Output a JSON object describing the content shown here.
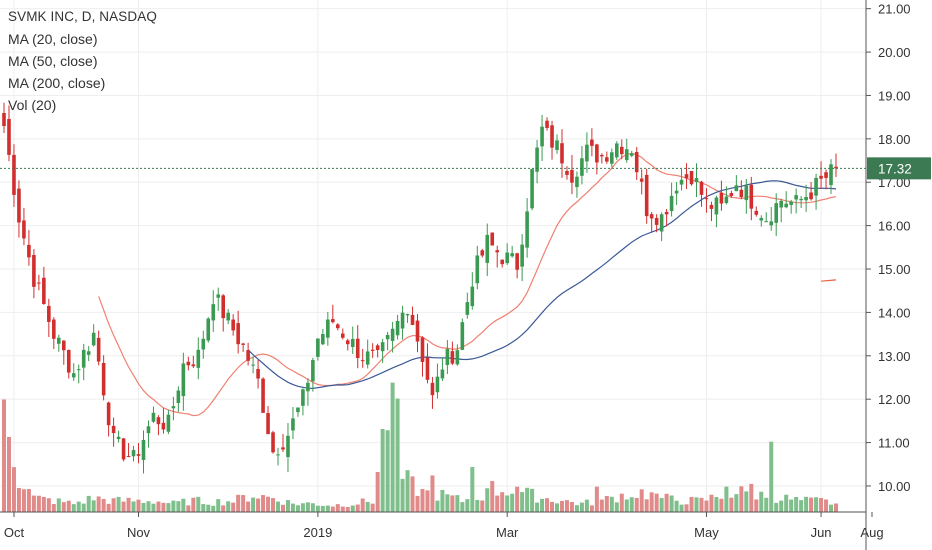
{
  "chart_data": {
    "type": "candlestick",
    "title": "SVMK INC, D, NASDAQ",
    "legend": [
      "MA (20, close)",
      "MA (50, close)",
      "MA (200, close)",
      "Vol (20)"
    ],
    "y_axis": {
      "position": "right",
      "ylim": [
        9.4,
        21.2
      ],
      "ticks": [
        "21.00",
        "20.00",
        "19.00",
        "18.00",
        "17.00",
        "16.00",
        "15.00",
        "14.00",
        "13.00",
        "12.00",
        "11.00",
        "10.00"
      ]
    },
    "x_axis": {
      "tick_labels": [
        "Oct",
        "Nov",
        "2019",
        "Mar",
        "May",
        "Jun",
        "Aug"
      ]
    },
    "last_price": "17.32",
    "last_price_value": 17.32,
    "colors": {
      "up": "#26a69a",
      "up_body": "#3a9a52",
      "down": "#d12e2e",
      "vol_up": "#7fbf8c",
      "vol_down": "#e08a8a",
      "ma20": "#f08070",
      "ma50": "#3b5998",
      "ma200": "#e8603c",
      "last_price_bg": "#3b7a52",
      "grid": "#eeeeee"
    },
    "price_anchors": [
      [
        0,
        18.3
      ],
      [
        3,
        16.2
      ],
      [
        6,
        14.8
      ],
      [
        10,
        13.5
      ],
      [
        14,
        12.6
      ],
      [
        18,
        13.5
      ],
      [
        22,
        11.0
      ],
      [
        26,
        10.6
      ],
      [
        30,
        11.6
      ],
      [
        33,
        11.4
      ],
      [
        36,
        12.8
      ],
      [
        39,
        13.0
      ],
      [
        42,
        14.4
      ],
      [
        45,
        13.8
      ],
      [
        48,
        13.2
      ],
      [
        51,
        12.4
      ],
      [
        54,
        10.8
      ],
      [
        57,
        11.2
      ],
      [
        60,
        12.0
      ],
      [
        63,
        13.4
      ],
      [
        66,
        13.8
      ],
      [
        69,
        13.4
      ],
      [
        72,
        13.0
      ],
      [
        75,
        12.9
      ],
      [
        78,
        13.5
      ],
      [
        81,
        14.2
      ],
      [
        84,
        13.0
      ],
      [
        86,
        12.0
      ],
      [
        88,
        12.8
      ],
      [
        91,
        13.2
      ],
      [
        94,
        14.8
      ],
      [
        97,
        15.6
      ],
      [
        100,
        15.3
      ],
      [
        103,
        15.1
      ],
      [
        106,
        17.2
      ],
      [
        108,
        18.2
      ],
      [
        111,
        17.8
      ],
      [
        114,
        17.2
      ],
      [
        117,
        17.7
      ],
      [
        120,
        17.6
      ],
      [
        123,
        17.9
      ],
      [
        126,
        17.8
      ],
      [
        129,
        16.4
      ],
      [
        132,
        16.2
      ],
      [
        135,
        17.0
      ],
      [
        138,
        17.2
      ],
      [
        141,
        16.5
      ],
      [
        144,
        16.4
      ],
      [
        147,
        17.0
      ],
      [
        150,
        16.6
      ],
      [
        153,
        16.2
      ],
      [
        156,
        16.6
      ],
      [
        159,
        16.5
      ],
      [
        162,
        16.8
      ],
      [
        165,
        17.1
      ],
      [
        167,
        17.32
      ]
    ],
    "volume_anchors": [
      [
        0,
        2.1
      ],
      [
        3,
        0.6
      ],
      [
        6,
        0.25
      ],
      [
        10,
        0.2
      ],
      [
        14,
        0.15
      ],
      [
        18,
        0.25
      ],
      [
        22,
        0.2
      ],
      [
        26,
        0.2
      ],
      [
        30,
        0.2
      ],
      [
        34,
        0.15
      ],
      [
        38,
        0.2
      ],
      [
        42,
        0.18
      ],
      [
        46,
        0.2
      ],
      [
        50,
        0.3
      ],
      [
        54,
        0.25
      ],
      [
        58,
        0.15
      ],
      [
        62,
        0.15
      ],
      [
        66,
        0.12
      ],
      [
        70,
        0.15
      ],
      [
        74,
        0.2
      ],
      [
        78,
        2.3
      ],
      [
        80,
        0.6
      ],
      [
        84,
        0.35
      ],
      [
        88,
        0.3
      ],
      [
        92,
        0.2
      ],
      [
        96,
        0.3
      ],
      [
        100,
        0.4
      ],
      [
        104,
        0.35
      ],
      [
        108,
        0.25
      ],
      [
        112,
        0.2
      ],
      [
        116,
        0.15
      ],
      [
        120,
        0.2
      ],
      [
        124,
        0.3
      ],
      [
        128,
        0.35
      ],
      [
        132,
        0.25
      ],
      [
        136,
        0.2
      ],
      [
        140,
        0.2
      ],
      [
        144,
        0.3
      ],
      [
        148,
        0.35
      ],
      [
        152,
        0.3
      ],
      [
        156,
        0.25
      ],
      [
        160,
        0.2
      ],
      [
        164,
        0.2
      ],
      [
        167,
        0.15
      ]
    ],
    "volume_spikes": [
      [
        0,
        2.0
      ],
      [
        78,
        2.3
      ],
      [
        94,
        0.8
      ],
      [
        98,
        0.55
      ],
      [
        103,
        0.45
      ],
      [
        119,
        0.45
      ],
      [
        130,
        0.35
      ],
      [
        145,
        0.45
      ],
      [
        150,
        0.5
      ],
      [
        154,
        1.25
      ],
      [
        86,
        0.65
      ],
      [
        127,
        0.25
      ]
    ],
    "grid": true,
    "legend_position": "top-left"
  }
}
